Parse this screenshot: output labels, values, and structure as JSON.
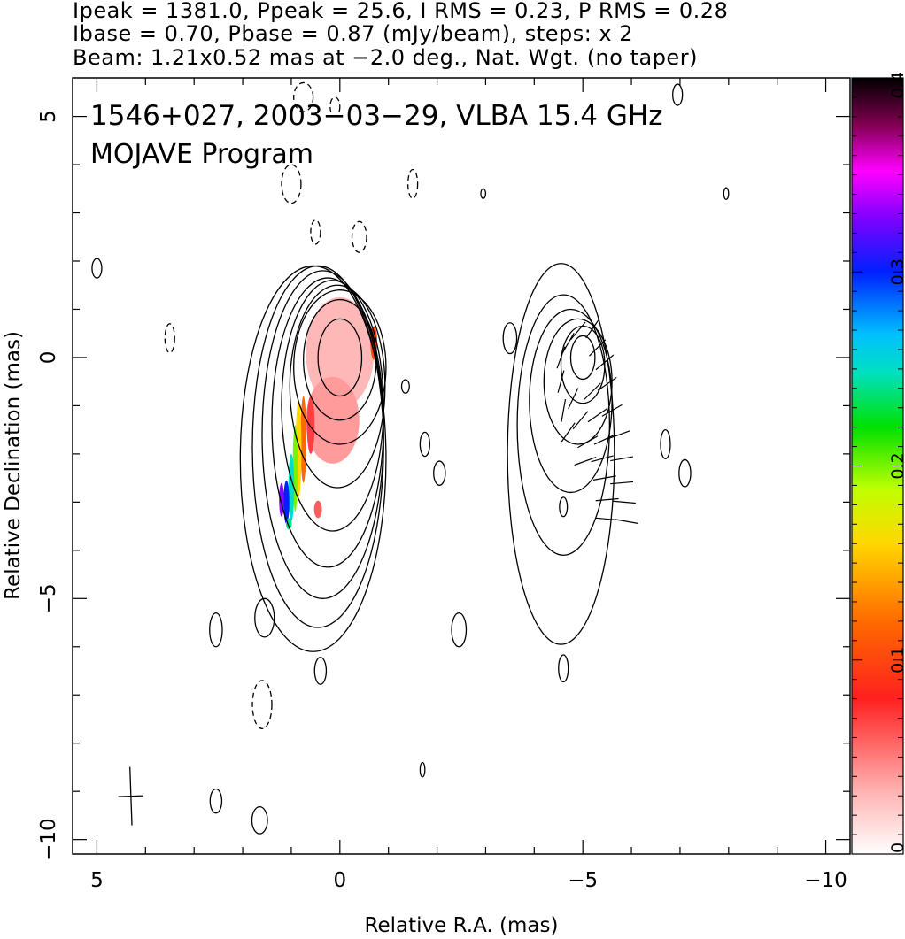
{
  "header": {
    "line1": "Ipeak = 1381.0, Ppeak = 25.6, I RMS = 0.23, P RMS = 0.28",
    "line2": "Ibase = 0.70, Pbase = 0.87 (mJy/beam), steps: x 2",
    "line3": "Beam: 1.21x0.52 mas at −2.0 deg., Nat. Wgt. (no taper)"
  },
  "annotation": {
    "line1": "1546+027, 2003−03−29, VLBA 15.4 GHz",
    "line2": "MOJAVE Program"
  },
  "chart_data": {
    "type": "contour",
    "xlabel": "Relative R.A. (mas)",
    "ylabel": "Relative Declination (mas)",
    "xlim": [
      5.5,
      -10.5
    ],
    "ylim": [
      -10.3,
      5.8
    ],
    "x_ticks": [
      {
        "value": 5,
        "label": "5"
      },
      {
        "value": 0,
        "label": "0"
      },
      {
        "value": -5,
        "label": "−5"
      },
      {
        "value": -10,
        "label": "−10"
      }
    ],
    "y_ticks": [
      {
        "value": 5,
        "label": "5"
      },
      {
        "value": 0,
        "label": "0"
      },
      {
        "value": -5,
        "label": "−5"
      },
      {
        "value": -10,
        "label": "−10"
      }
    ],
    "colorbar": {
      "range": [
        0,
        0.4
      ],
      "ticks": [
        {
          "value": 0,
          "label": "0"
        },
        {
          "value": 0.1,
          "label": "0.1"
        },
        {
          "value": 0.2,
          "label": "0.2"
        },
        {
          "value": 0.3,
          "label": "0.3"
        },
        {
          "value": 0.4,
          "label": "0.4"
        }
      ]
    },
    "beam": {
      "major_mas": 1.21,
      "minor_mas": 0.52,
      "pa_deg": -2.0,
      "center": [
        4.3,
        -9.1
      ]
    },
    "stokes_i_map": {
      "center": [
        0,
        0
      ],
      "contours": [
        {
          "cx": 0.0,
          "cy": 0.0,
          "rx": 0.45,
          "ry": 0.8
        },
        {
          "cx": 0.0,
          "cy": -0.05,
          "rx": 0.75,
          "ry": 1.25
        },
        {
          "cx": 0.0,
          "cy": -0.2,
          "rx": 0.95,
          "ry": 1.6
        },
        {
          "cx": 0.05,
          "cy": -0.6,
          "rx": 0.98,
          "ry": 2.1
        },
        {
          "cx": 0.15,
          "cy": -1.0,
          "rx": 1.05,
          "ry": 2.6
        },
        {
          "cx": 0.25,
          "cy": -1.35,
          "rx": 1.15,
          "ry": 3.0
        },
        {
          "cx": 0.35,
          "cy": -1.6,
          "rx": 1.25,
          "ry": 3.4
        },
        {
          "cx": 0.45,
          "cy": -1.85,
          "rx": 1.35,
          "ry": 3.75
        },
        {
          "cx": 0.55,
          "cy": -2.1,
          "rx": 1.5,
          "ry": 4.0
        }
      ],
      "islands": [
        {
          "cx": 1.55,
          "cy": -5.4,
          "rx": 0.2,
          "ry": 0.4,
          "dashed": false
        },
        {
          "cx": 2.55,
          "cy": -5.65,
          "rx": 0.13,
          "ry": 0.35,
          "dashed": false
        },
        {
          "cx": 0.4,
          "cy": -6.5,
          "rx": 0.12,
          "ry": 0.28,
          "dashed": false
        },
        {
          "cx": 1.6,
          "cy": -7.2,
          "rx": 0.2,
          "ry": 0.5,
          "dashed": true
        },
        {
          "cx": 2.55,
          "cy": -9.2,
          "rx": 0.12,
          "ry": 0.25,
          "dashed": false
        },
        {
          "cx": 1.65,
          "cy": -9.6,
          "rx": 0.16,
          "ry": 0.28,
          "dashed": false
        },
        {
          "cx": -1.7,
          "cy": -8.55,
          "rx": 0.05,
          "ry": 0.15,
          "dashed": false
        },
        {
          "cx": 5.0,
          "cy": 1.85,
          "rx": 0.1,
          "ry": 0.2,
          "dashed": false
        },
        {
          "cx": 3.5,
          "cy": 0.4,
          "rx": 0.1,
          "ry": 0.3,
          "dashed": true
        },
        {
          "cx": 1.0,
          "cy": 3.6,
          "rx": 0.2,
          "ry": 0.4,
          "dashed": true
        },
        {
          "cx": 0.5,
          "cy": 2.6,
          "rx": 0.1,
          "ry": 0.25,
          "dashed": true
        },
        {
          "cx": -0.4,
          "cy": 2.5,
          "rx": 0.15,
          "ry": 0.32,
          "dashed": true
        },
        {
          "cx": 0.75,
          "cy": 5.4,
          "rx": 0.2,
          "ry": 0.3,
          "dashed": true
        },
        {
          "cx": 0.1,
          "cy": 5.2,
          "rx": 0.1,
          "ry": 0.2,
          "dashed": true
        },
        {
          "cx": -1.5,
          "cy": 3.6,
          "rx": 0.1,
          "ry": 0.3,
          "dashed": true
        },
        {
          "cx": -1.35,
          "cy": -0.6,
          "rx": 0.08,
          "ry": 0.14,
          "dashed": false
        },
        {
          "cx": -1.75,
          "cy": -1.8,
          "rx": 0.1,
          "ry": 0.25,
          "dashed": false
        },
        {
          "cx": -2.05,
          "cy": -2.4,
          "rx": 0.12,
          "ry": 0.25,
          "dashed": false
        },
        {
          "cx": -2.45,
          "cy": -5.65,
          "rx": 0.15,
          "ry": 0.35,
          "dashed": false
        },
        {
          "cx": -2.95,
          "cy": 3.4,
          "rx": 0.05,
          "ry": 0.1,
          "dashed": false
        }
      ],
      "polarized_fill": [
        {
          "cx": 0.0,
          "cy": 0.1,
          "rx": 0.7,
          "ry": 1.15,
          "value": 0.03
        },
        {
          "cx": 0.15,
          "cy": -1.3,
          "rx": 0.55,
          "ry": 0.9,
          "value": 0.04
        },
        {
          "cx": -0.7,
          "cy": 0.3,
          "rx": 0.07,
          "ry": 0.35,
          "value": 0.1
        },
        {
          "cx": 0.45,
          "cy": -3.15,
          "rx": 0.08,
          "ry": 0.18,
          "value": 0.06
        },
        {
          "cx": 0.6,
          "cy": -1.4,
          "rx": 0.08,
          "ry": 0.6,
          "value": 0.07
        },
        {
          "cx": 0.75,
          "cy": -1.7,
          "rx": 0.06,
          "ry": 0.9,
          "value": 0.12
        },
        {
          "cx": 0.85,
          "cy": -1.9,
          "rx": 0.06,
          "ry": 1.0,
          "value": 0.16
        },
        {
          "cx": 0.92,
          "cy": -2.3,
          "rx": 0.05,
          "ry": 0.9,
          "value": 0.2
        },
        {
          "cx": 1.0,
          "cy": -2.7,
          "rx": 0.06,
          "ry": 0.7,
          "value": 0.25
        },
        {
          "cx": 1.1,
          "cy": -3.0,
          "rx": 0.06,
          "ry": 0.45,
          "value": 0.3
        },
        {
          "cx": 1.2,
          "cy": -2.95,
          "rx": 0.05,
          "ry": 0.35,
          "value": 0.33
        },
        {
          "cx": 1.05,
          "cy": -3.45,
          "rx": 0.06,
          "ry": 0.12,
          "value": 0.24
        }
      ]
    },
    "polarization_map": {
      "center": [
        -5,
        0
      ],
      "contours": [
        {
          "cx": -5.0,
          "cy": 0.0,
          "rx": 0.25,
          "ry": 0.45
        },
        {
          "cx": -5.0,
          "cy": -0.15,
          "rx": 0.45,
          "ry": 0.8
        },
        {
          "cx": -4.9,
          "cy": -0.5,
          "rx": 0.7,
          "ry": 1.3
        },
        {
          "cx": -4.75,
          "cy": -0.9,
          "rx": 0.85,
          "ry": 1.9
        },
        {
          "cx": -4.6,
          "cy": -1.4,
          "rx": 0.95,
          "ry": 2.7
        }
      ],
      "outer": {
        "cx": -4.55,
        "cy": -2.0,
        "rx": 1.1,
        "ry": 3.95
      },
      "islands": [
        {
          "cx": -3.5,
          "cy": 0.4,
          "rx": 0.14,
          "ry": 0.32,
          "dashed": false
        },
        {
          "cx": -4.6,
          "cy": -3.1,
          "rx": 0.08,
          "ry": 0.2,
          "dashed": false
        },
        {
          "cx": -4.6,
          "cy": -6.45,
          "rx": 0.1,
          "ry": 0.28,
          "dashed": false
        },
        {
          "cx": -6.7,
          "cy": -1.8,
          "rx": 0.1,
          "ry": 0.3,
          "dashed": false
        },
        {
          "cx": -7.1,
          "cy": -2.4,
          "rx": 0.12,
          "ry": 0.28,
          "dashed": false
        },
        {
          "cx": -6.95,
          "cy": 5.45,
          "rx": 0.1,
          "ry": 0.22,
          "dashed": false
        },
        {
          "cx": -7.95,
          "cy": 3.4,
          "rx": 0.05,
          "ry": 0.12,
          "dashed": false
        }
      ],
      "evpa_vectors": [
        {
          "x": -5.2,
          "y": 0.6,
          "angle": 35
        },
        {
          "x": -4.9,
          "y": 0.55,
          "angle": 40
        },
        {
          "x": -4.7,
          "y": 0.3,
          "angle": 30
        },
        {
          "x": -5.3,
          "y": 0.2,
          "angle": 45
        },
        {
          "x": -5.45,
          "y": -0.1,
          "angle": 50
        },
        {
          "x": -4.55,
          "y": 0.0,
          "angle": 20
        },
        {
          "x": -4.55,
          "y": -0.5,
          "angle": 15
        },
        {
          "x": -5.5,
          "y": -0.55,
          "angle": 55
        },
        {
          "x": -5.2,
          "y": -0.7,
          "angle": 45
        },
        {
          "x": -4.8,
          "y": -0.85,
          "angle": 25
        },
        {
          "x": -5.6,
          "y": -1.1,
          "angle": 60
        },
        {
          "x": -5.3,
          "y": -1.2,
          "angle": 55
        },
        {
          "x": -4.95,
          "y": -1.3,
          "angle": 40
        },
        {
          "x": -4.6,
          "y": -1.1,
          "angle": 10
        },
        {
          "x": -5.75,
          "y": -1.6,
          "angle": 70
        },
        {
          "x": -5.45,
          "y": -1.7,
          "angle": 65
        },
        {
          "x": -5.1,
          "y": -1.75,
          "angle": 60
        },
        {
          "x": -4.7,
          "y": -1.55,
          "angle": 35
        },
        {
          "x": -5.8,
          "y": -2.1,
          "angle": 80
        },
        {
          "x": -5.4,
          "y": -2.1,
          "angle": 75
        },
        {
          "x": -5.05,
          "y": -2.15,
          "angle": 70
        },
        {
          "x": -5.8,
          "y": -2.6,
          "angle": 85
        },
        {
          "x": -5.45,
          "y": -2.5,
          "angle": 80
        },
        {
          "x": -5.85,
          "y": -3.0,
          "angle": 95
        },
        {
          "x": -5.5,
          "y": -2.95,
          "angle": 85
        },
        {
          "x": -5.9,
          "y": -3.4,
          "angle": 100
        },
        {
          "x": -5.5,
          "y": -3.35,
          "angle": 95
        }
      ]
    }
  },
  "colors": {
    "axis": "#000000",
    "contour": "#000000"
  }
}
